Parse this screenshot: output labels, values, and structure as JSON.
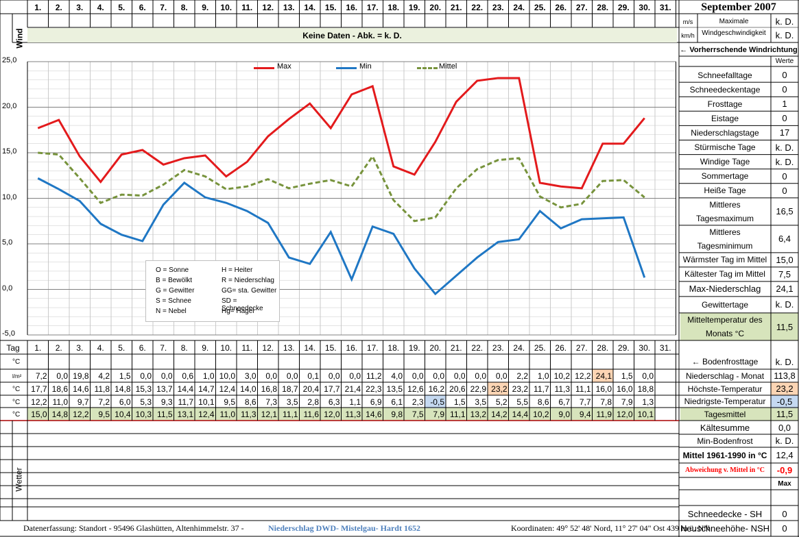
{
  "header": {
    "days": [
      "1.",
      "2.",
      "3.",
      "4.",
      "5.",
      "6.",
      "7.",
      "8.",
      "9.",
      "10.",
      "11.",
      "12.",
      "13.",
      "14.",
      "15.",
      "16.",
      "17.",
      "18.",
      "19.",
      "20.",
      "21.",
      "22.",
      "23.",
      "24.",
      "25.",
      "26.",
      "27.",
      "28.",
      "29.",
      "30.",
      "31."
    ],
    "month_title": "September 2007",
    "wind_label": "Wind",
    "unit_ms": "m/s",
    "unit_kmh": "km/h",
    "max_wind_label_1": "Maximale",
    "max_wind_label_2": "Windgeschwindigkeit",
    "max_wind_ms": "k. D.",
    "max_wind_kmh": "k. D.",
    "no_data_banner": "Keine Daten - Abk. = k. D.",
    "prevailing_wind": "← Vorherrschende Windrichtung",
    "tag_label": "Tag"
  },
  "chart_data": {
    "type": "line",
    "x": [
      1,
      2,
      3,
      4,
      5,
      6,
      7,
      8,
      9,
      10,
      11,
      12,
      13,
      14,
      15,
      16,
      17,
      18,
      19,
      20,
      21,
      22,
      23,
      24,
      25,
      26,
      27,
      28,
      29,
      30
    ],
    "series": [
      {
        "name": "Max",
        "color": "#e31a1c",
        "values": [
          17.7,
          18.6,
          14.6,
          11.8,
          14.8,
          15.3,
          13.7,
          14.4,
          14.7,
          12.4,
          14.0,
          16.8,
          18.7,
          20.4,
          17.7,
          21.4,
          22.3,
          13.5,
          12.6,
          16.2,
          20.6,
          22.9,
          23.2,
          23.2,
          11.7,
          11.3,
          11.1,
          16.0,
          16.0,
          18.8
        ]
      },
      {
        "name": "Min",
        "color": "#1f77c4",
        "values": [
          12.2,
          11.0,
          9.7,
          7.2,
          6.0,
          5.3,
          9.3,
          11.7,
          10.1,
          9.5,
          8.6,
          7.3,
          3.5,
          2.8,
          6.3,
          1.1,
          6.9,
          6.1,
          2.3,
          -0.5,
          1.5,
          3.5,
          5.2,
          5.5,
          8.6,
          6.7,
          7.7,
          7.8,
          7.9,
          1.3
        ]
      },
      {
        "name": "Mittel",
        "color": "#77933c",
        "values": [
          15.0,
          14.8,
          12.2,
          9.5,
          10.4,
          10.3,
          11.5,
          13.1,
          12.4,
          11.0,
          11.3,
          12.1,
          11.1,
          11.6,
          12.0,
          11.3,
          14.6,
          9.8,
          7.5,
          7.9,
          11.1,
          13.2,
          14.2,
          14.4,
          10.2,
          9.0,
          9.4,
          11.9,
          12.0,
          10.1
        ]
      }
    ],
    "ylim": [
      -5,
      25
    ],
    "y_ticks": [
      "-5,0",
      "0,0",
      "5,0",
      "10,0",
      "15,0",
      "20,0",
      "25,0"
    ],
    "legend_position": "top-center",
    "grid": true
  },
  "weather_key": [
    [
      "O = Sonne",
      "H = Heiter"
    ],
    [
      "B = Bewölkt",
      "R = Niederschlag"
    ],
    [
      "G = Gewitter",
      "GG= sta. Gewitter"
    ],
    [
      "S = Schnee",
      "SD = Schneedecke"
    ],
    [
      "N = Nebel",
      "Hg= Hagel"
    ]
  ],
  "stats": {
    "werte": "Werte",
    "rows": [
      {
        "label": "Schneefalltage",
        "value": "0"
      },
      {
        "label": "Schneedeckentage",
        "value": "0"
      },
      {
        "label": "Frosttage",
        "value": "1"
      },
      {
        "label": "Eistage",
        "value": "0"
      },
      {
        "label": "Niederschlagstage",
        "value": "17"
      },
      {
        "label": "Stürmische Tage",
        "value": "k. D."
      },
      {
        "label": "Windige Tage",
        "value": "k. D."
      },
      {
        "label": "Sommertage",
        "value": "0"
      },
      {
        "label": "Heiße Tage",
        "value": "0"
      }
    ],
    "mean_max_1": "Mittleres",
    "mean_max_2": "Tagesmaximum",
    "mean_max_value": "16,5",
    "mean_min_1": "Mittleres",
    "mean_min_2": "Tagesminimum",
    "mean_min_value": "6,4",
    "warmest_label": "Wärmster Tag im Mittel",
    "warmest_value": "15,0",
    "coldest_label": "Kältester Tag im Mittel",
    "coldest_value": "7,5",
    "max_precip_label": "Max-Niederschlag",
    "max_precip_value": "24,1",
    "thunder_label": "Gewittertage",
    "thunder_value": "k. D.",
    "month_mean_1": "Mitteltemperatur des",
    "month_mean_2": "Monats °C",
    "month_mean_value": "11,5"
  },
  "table": {
    "unit_c": "°C",
    "unit_lm": "l/m²",
    "precip": [
      "7,2",
      "0,0",
      "19,8",
      "4,2",
      "1,5",
      "0,0",
      "0,0",
      "0,6",
      "1,0",
      "10,0",
      "3,0",
      "0,0",
      "0,0",
      "0,1",
      "0,0",
      "0,0",
      "11,2",
      "4,0",
      "0,0",
      "0,0",
      "0,0",
      "0,0",
      "0,0",
      "2,2",
      "1,0",
      "10,2",
      "12,2",
      "24,1",
      "1,5",
      "0,0"
    ],
    "tmax": [
      "17,7",
      "18,6",
      "14,6",
      "11,8",
      "14,8",
      "15,3",
      "13,7",
      "14,4",
      "14,7",
      "12,4",
      "14,0",
      "16,8",
      "18,7",
      "20,4",
      "17,7",
      "21,4",
      "22,3",
      "13,5",
      "12,6",
      "16,2",
      "20,6",
      "22,9",
      "23,2",
      "23,2",
      "11,7",
      "11,3",
      "11,1",
      "16,0",
      "16,0",
      "18,8"
    ],
    "tmin": [
      "12,2",
      "11,0",
      "9,7",
      "7,2",
      "6,0",
      "5,3",
      "9,3",
      "11,7",
      "10,1",
      "9,5",
      "8,6",
      "7,3",
      "3,5",
      "2,8",
      "6,3",
      "1,1",
      "6,9",
      "6,1",
      "2,3",
      "-0,5",
      "1,5",
      "3,5",
      "5,2",
      "5,5",
      "8,6",
      "6,7",
      "7,7",
      "7,8",
      "7,9",
      "1,3"
    ],
    "tmean": [
      "15,0",
      "14,8",
      "12,2",
      "9,5",
      "10,4",
      "10,3",
      "11,5",
      "13,1",
      "12,4",
      "11,0",
      "11,3",
      "12,1",
      "11,1",
      "11,6",
      "12,0",
      "11,3",
      "14,6",
      "9,8",
      "7,5",
      "7,9",
      "11,1",
      "13,2",
      "14,2",
      "14,4",
      "10,2",
      "9,0",
      "9,4",
      "11,9",
      "12,0",
      "10,1"
    ],
    "weather_label": "Wetter"
  },
  "summary": {
    "ground_frost_label": "← Bodenfrosttage",
    "ground_frost_value": "k. D.",
    "precip_month_label": "Niederschlag - Monat",
    "precip_month_value": "113,8",
    "max_temp_label": "Höchste-Temperatur",
    "max_temp_value": "23,2",
    "min_temp_label": "Niedrigste-Temperatur",
    "min_temp_value": "-0,5",
    "daily_mean_label": "Tagesmittel",
    "daily_mean_value": "11,5",
    "cold_sum_label": "Kältesumme",
    "cold_sum_value": "0,0",
    "min_ground_frost_label": "Min-Bodenfrost",
    "min_ground_frost_value": "k. D.",
    "normal_label": "Mittel 1961-1990 in °C",
    "normal_value": "12,4",
    "deviation_label": "Abweichung v. Mittel in °C",
    "deviation_value": "-0,9",
    "max_label": "Max",
    "snow_cover_label": "Schneedecke -   SH",
    "snow_cover_value": "0",
    "new_snow_label": "Neuschneehöhe- NSH",
    "new_snow_value": "0"
  },
  "footer": {
    "left": "Datenerfassung:  Standort -  95496  Glashütten, Altenhimmelstr. 37 -",
    "link": "Niederschlag DWD- Mistelgau- Hardt 1652",
    "coords": "Koordinaten:  49° 52' 48' Nord,    11° 27' 04\" Ost   439 m ü. NN"
  },
  "colors": {
    "banner": "#ebf1de",
    "green_row": "#d7e4bc",
    "orange": "#fcd5b4",
    "blue": "#c5d9f1",
    "grid": "#a6a6a6"
  }
}
